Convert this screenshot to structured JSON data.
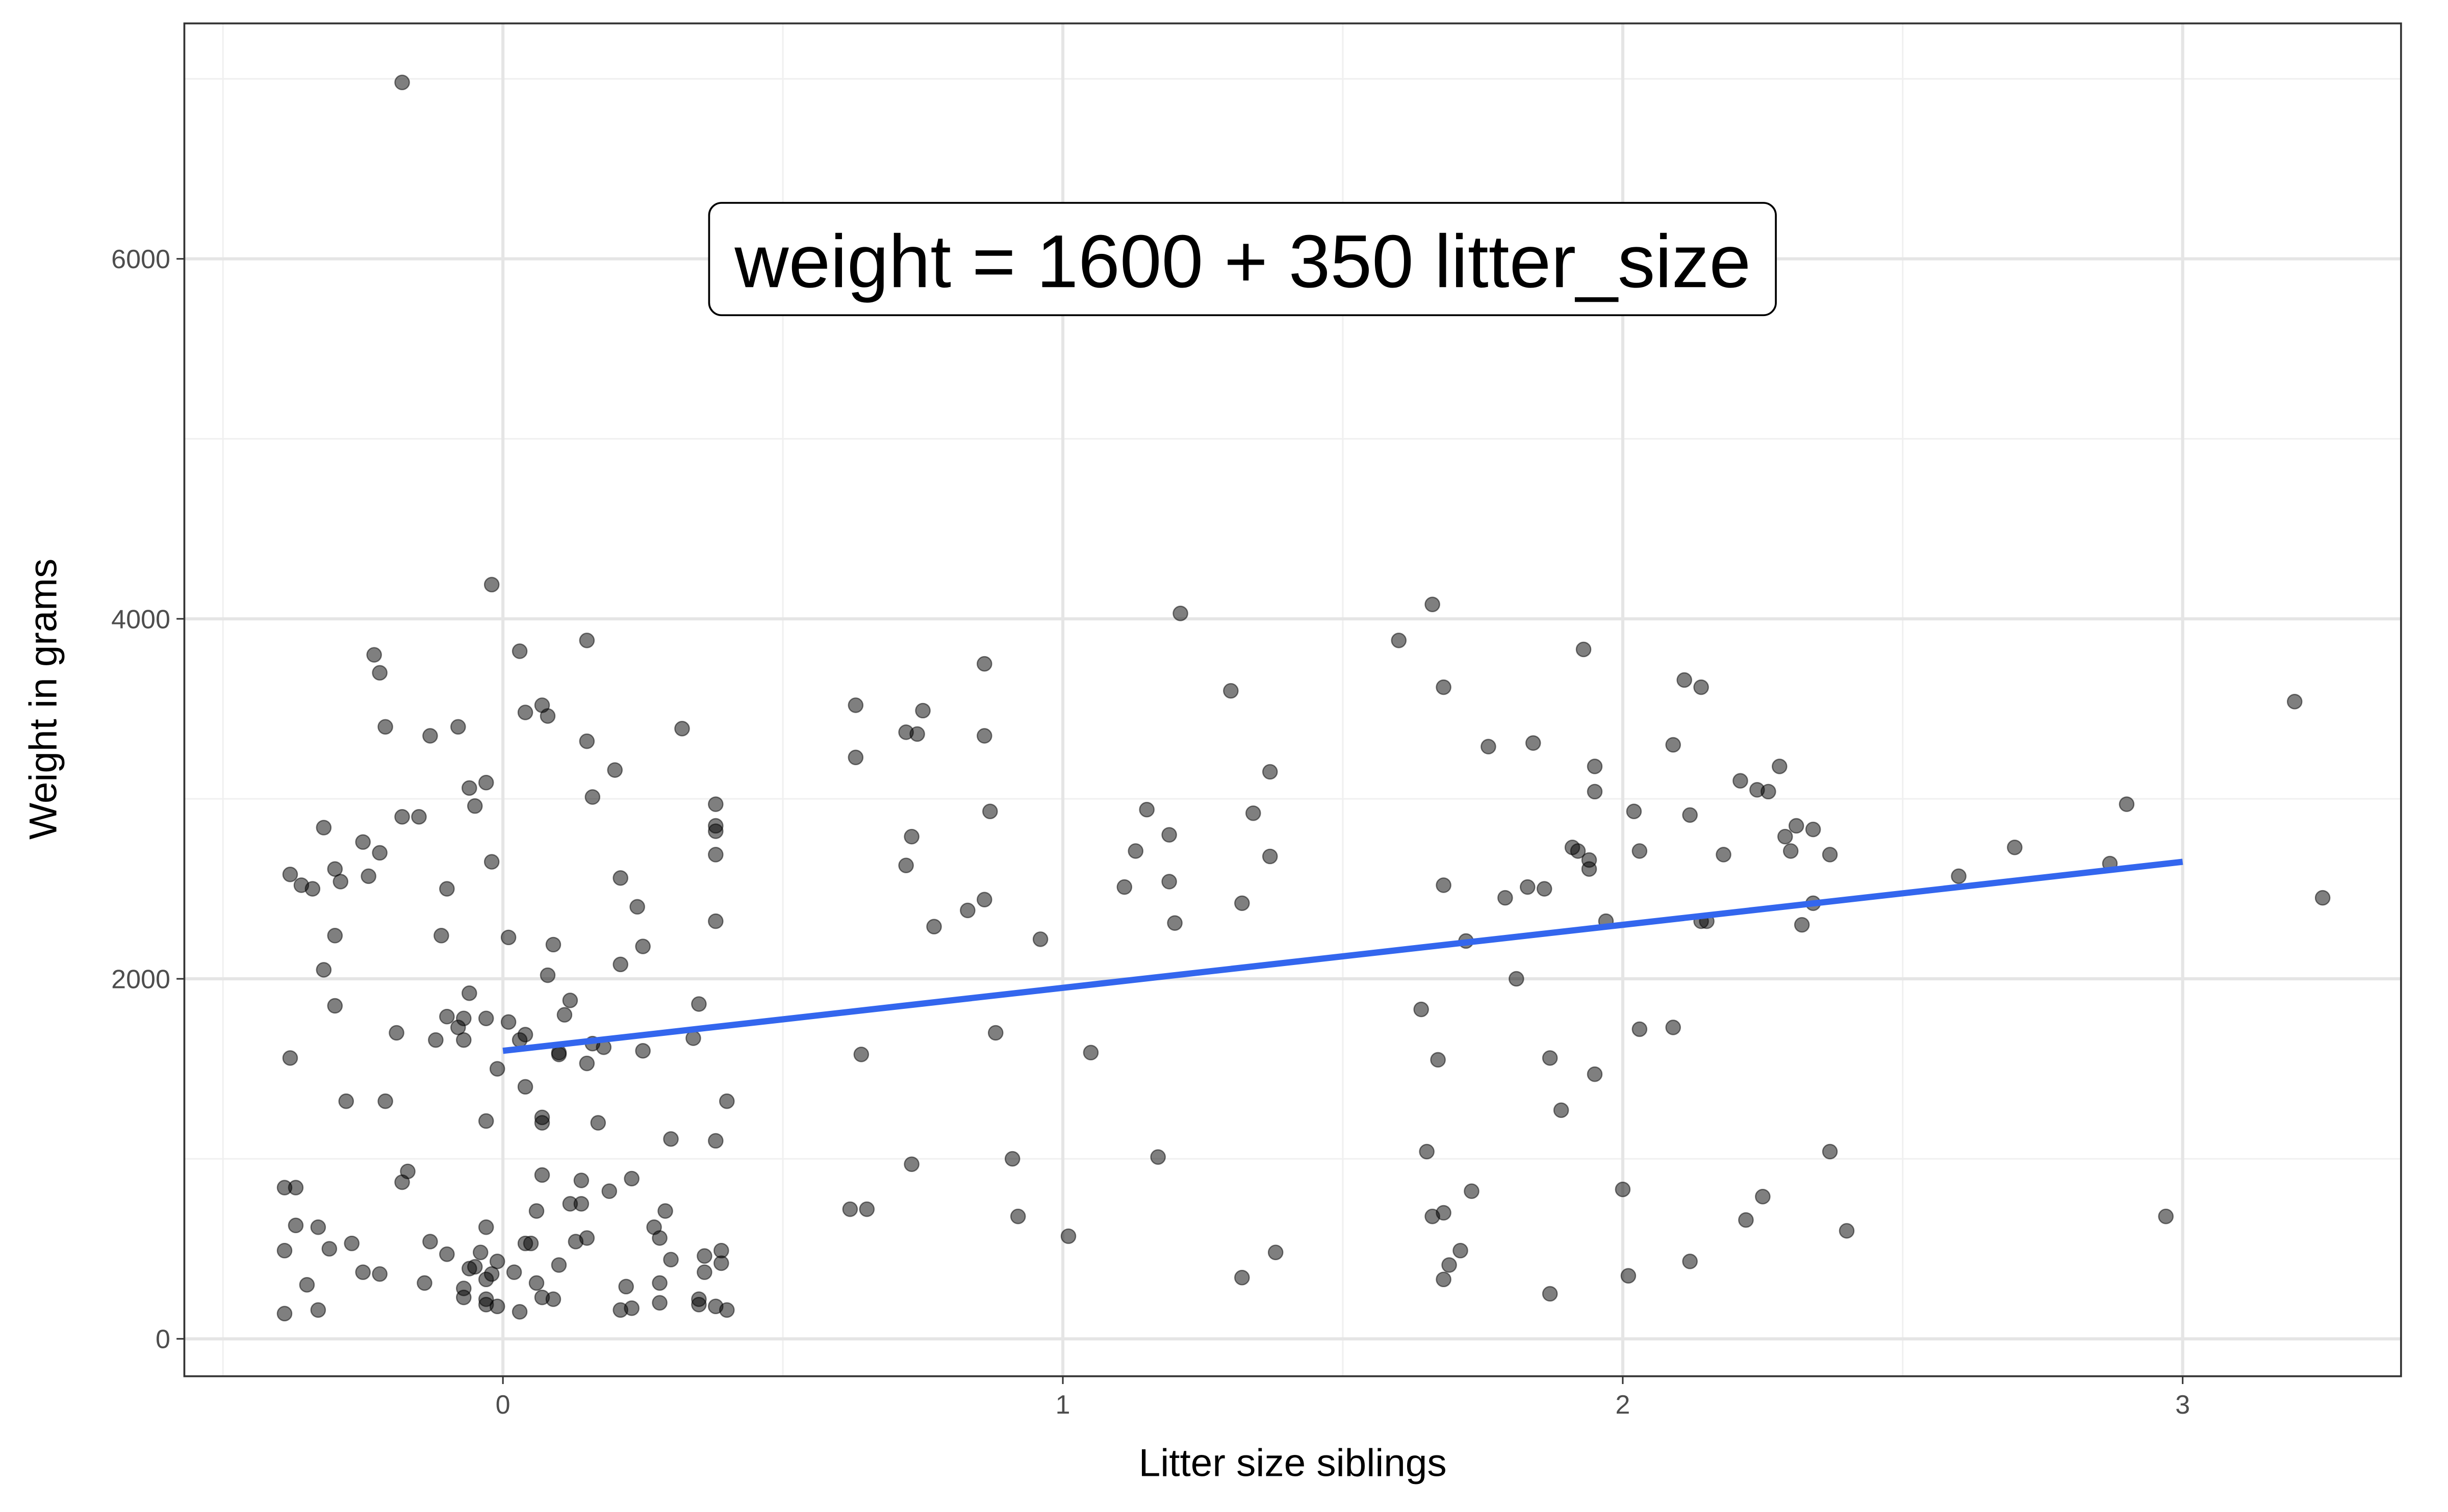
{
  "chart_data": {
    "type": "scatter",
    "x": [
      -0.18,
      -0.02,
      0.03,
      0.15,
      -0.23,
      -0.22,
      0.07,
      0.04,
      0.08,
      -0.21,
      -0.13,
      -0.08,
      0.15,
      0.32,
      0.2,
      -0.03,
      -0.06,
      0.16,
      -0.05,
      0.38,
      0.38,
      0.38,
      -0.18,
      -0.15,
      -0.32,
      -0.25,
      -0.22,
      0.38,
      -0.02,
      -0.3,
      -0.38,
      -0.24,
      -0.29,
      -0.36,
      -0.34,
      0.21,
      -0.1,
      0.24,
      0.38,
      -0.3,
      -0.11,
      0.01,
      0.09,
      0.25,
      0.21,
      -0.32,
      0.08,
      -0.06,
      0.12,
      -0.3,
      0.35,
      -0.1,
      -0.07,
      -0.03,
      0.01,
      0.11,
      -0.08,
      -0.19,
      0.04,
      -0.12,
      -0.07,
      0.03,
      0.34,
      0.16,
      0.18,
      0.1,
      0.25,
      0.1,
      -0.38,
      0.15,
      -0.01,
      0.04,
      0.4,
      -0.28,
      -0.21,
      -0.03,
      0.07,
      0.07,
      0.17,
      0.3,
      0.38,
      -0.17,
      0.07,
      0.23,
      0.14,
      -0.18,
      -0.37,
      -0.39,
      0.19,
      0.12,
      0.14,
      0.06,
      0.29,
      -0.37,
      -0.33,
      -0.03,
      0.27,
      0.15,
      0.13,
      0.28,
      -0.13,
      -0.27,
      0.04,
      0.05,
      -0.39,
      -0.31,
      -0.1,
      -0.04,
      0.39,
      0.36,
      0.3,
      -0.01,
      -0.06,
      -0.05,
      0.39,
      0.1,
      -0.25,
      -0.22,
      0.36,
      0.02,
      -0.02,
      -0.03,
      0.06,
      -0.35,
      -0.14,
      0.28,
      -0.07,
      0.22,
      0.07,
      -0.07,
      -0.03,
      0.09,
      0.35,
      0.35,
      0.28,
      -0.03,
      -0.01,
      0.38,
      0.21,
      0.23,
      -0.33,
      0.03,
      -0.39,
      0.4,
      0.63,
      0.86,
      0.75,
      0.72,
      0.74,
      0.86,
      0.63,
      0.87,
      0.73,
      0.72,
      0.86,
      0.83,
      0.77,
      0.96,
      0.88,
      1.05,
      0.64,
      0.73,
      0.91,
      0.62,
      0.65,
      0.92,
      1.01,
      1.21,
      1.3,
      1.37,
      1.15,
      1.34,
      1.19,
      1.13,
      1.37,
      1.19,
      1.11,
      1.32,
      1.2,
      1.17,
      1.38,
      1.32,
      1.66,
      1.6,
      1.93,
      1.68,
      2.11,
      2.14,
      1.76,
      1.84,
      2.09,
      1.95,
      2.28,
      2.21,
      2.24,
      2.26,
      1.95,
      2.02,
      2.12,
      2.31,
      2.34,
      2.29,
      1.91,
      1.92,
      2.03,
      2.3,
      2.18,
      2.37,
      1.94,
      1.94,
      1.68,
      1.83,
      1.86,
      1.79,
      2.34,
      1.97,
      2.14,
      2.15,
      2.32,
      1.72,
      1.81,
      1.64,
      2.03,
      2.09,
      1.67,
      1.87,
      1.95,
      1.89,
      1.65,
      2.37,
      2.0,
      1.73,
      2.25,
      1.68,
      1.66,
      2.22,
      2.4,
      1.71,
      1.69,
      2.12,
      1.68,
      2.01,
      1.87,
      3.2,
      2.9,
      2.7,
      2.87,
      2.6,
      3.25,
      2.97
    ],
    "values": [
      6980,
      4190,
      3820,
      3880,
      3800,
      3700,
      3520,
      3480,
      3460,
      3400,
      3350,
      3400,
      3320,
      3390,
      3160,
      3090,
      3060,
      3010,
      2960,
      2970,
      2850,
      2820,
      2900,
      2900,
      2840,
      2760,
      2700,
      2690,
      2650,
      2610,
      2580,
      2570,
      2540,
      2520,
      2500,
      2560,
      2500,
      2400,
      2320,
      2240,
      2240,
      2230,
      2190,
      2180,
      2080,
      2050,
      2020,
      1920,
      1880,
      1850,
      1860,
      1790,
      1780,
      1780,
      1760,
      1800,
      1730,
      1700,
      1690,
      1660,
      1660,
      1660,
      1670,
      1640,
      1620,
      1590,
      1600,
      1580,
      1560,
      1530,
      1500,
      1400,
      1320,
      1320,
      1320,
      1210,
      1230,
      1200,
      1200,
      1110,
      1100,
      930,
      910,
      890,
      880,
      870,
      840,
      840,
      820,
      750,
      750,
      710,
      710,
      630,
      620,
      620,
      620,
      560,
      540,
      560,
      540,
      530,
      530,
      530,
      490,
      500,
      470,
      480,
      490,
      460,
      440,
      430,
      390,
      400,
      420,
      410,
      370,
      360,
      370,
      370,
      360,
      330,
      310,
      300,
      310,
      310,
      280,
      290,
      230,
      230,
      220,
      220,
      220,
      190,
      200,
      190,
      180,
      180,
      160,
      170,
      160,
      150,
      140,
      160,
      3520,
      3750,
      3490,
      3370,
      3360,
      3350,
      3230,
      2930,
      2790,
      2630,
      2440,
      2380,
      2290,
      2220,
      1700,
      1590,
      1580,
      970,
      1000,
      720,
      720,
      680,
      570,
      4030,
      3600,
      3150,
      2940,
      2920,
      2800,
      2710,
      2680,
      2540,
      2510,
      2420,
      2310,
      1010,
      480,
      340,
      4080,
      3880,
      3830,
      3620,
      3660,
      3620,
      3290,
      3310,
      3300,
      3180,
      3180,
      3100,
      3050,
      3040,
      3040,
      2930,
      2910,
      2850,
      2830,
      2790,
      2730,
      2710,
      2710,
      2710,
      2690,
      2690,
      2660,
      2610,
      2520,
      2510,
      2500,
      2450,
      2420,
      2320,
      2320,
      2320,
      2300,
      2210,
      2000,
      1830,
      1720,
      1730,
      1550,
      1560,
      1470,
      1270,
      1040,
      1040,
      830,
      820,
      790,
      700,
      680,
      660,
      600,
      490,
      410,
      430,
      330,
      350,
      250,
      3540,
      2970,
      2730,
      2640,
      2570,
      2450,
      680
    ],
    "color": "#000000",
    "opacity": 0.5,
    "fit_line": {
      "x": [
        0,
        3
      ],
      "values": [
        1600,
        2650
      ],
      "color": "#3366ee"
    },
    "annotation": "weight = 1600 + 350 litter_size",
    "xlabel": "Litter size siblings",
    "ylabel": "Weight in grams",
    "xlim": [
      -0.569,
      3.39
    ],
    "ylim": [
      -208,
      7308
    ],
    "xticks": [
      0,
      1,
      2,
      3
    ],
    "yticks": [
      0,
      2000,
      4000,
      6000
    ],
    "x_minor_grid": [
      -0.5,
      0.5,
      1.5,
      2.5
    ],
    "y_minor_grid": [
      1000,
      3000,
      5000,
      7000
    ],
    "grid": true
  }
}
